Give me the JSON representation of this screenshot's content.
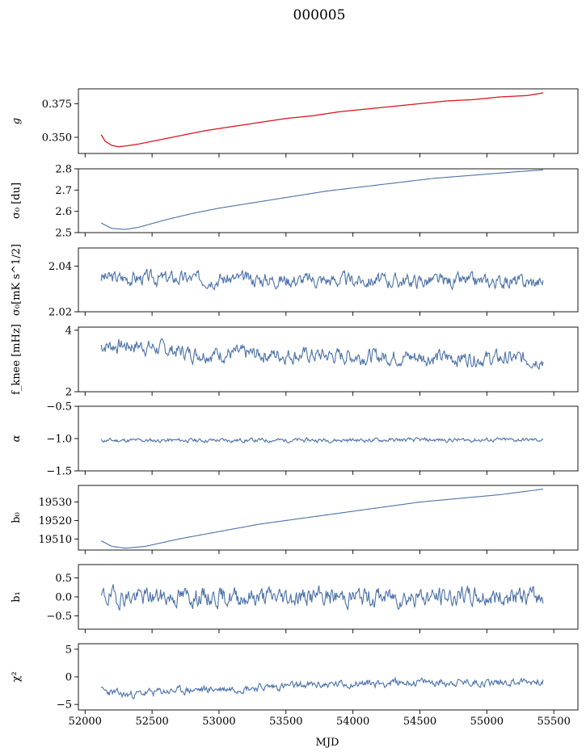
{
  "figure": {
    "title": "000005",
    "xlabel": "MJD",
    "xlim": [
      51950,
      55680
    ],
    "xticks": [
      52000,
      52500,
      53000,
      53500,
      54000,
      54500,
      55000,
      55500
    ],
    "x_start": 52120,
    "x_end": 55420,
    "main_color": "#4c72a8",
    "highlight_color": "#ff0000"
  },
  "chart_data": [
    {
      "type": "line",
      "id": "g",
      "ylabel": "g",
      "ylim": [
        0.338,
        0.386
      ],
      "yticks": [
        "0.350",
        "0.375"
      ],
      "ytick_values": [
        0.35,
        0.375
      ],
      "series": [
        {
          "color": "#4c72a8",
          "x": [
            52120,
            52150,
            52200,
            52250,
            52300,
            52400,
            52500,
            52700,
            52900,
            53100,
            53300,
            53500,
            53700,
            53900,
            54100,
            54300,
            54500,
            54700,
            54900,
            55100,
            55300,
            55420
          ],
          "y": [
            0.352,
            0.347,
            0.344,
            0.343,
            0.3435,
            0.345,
            0.347,
            0.351,
            0.355,
            0.358,
            0.361,
            0.364,
            0.366,
            0.369,
            0.371,
            0.373,
            0.375,
            0.377,
            0.378,
            0.38,
            0.381,
            0.383
          ]
        },
        {
          "color": "#ff0000",
          "x": [
            52120,
            52150,
            52200,
            52250,
            52300,
            52400,
            52500,
            52700,
            52900,
            53100,
            53300,
            53500,
            53700,
            53900,
            54100,
            54300,
            54500,
            54700,
            54900,
            55100,
            55300,
            55420
          ],
          "y": [
            0.352,
            0.347,
            0.344,
            0.343,
            0.3435,
            0.345,
            0.347,
            0.351,
            0.355,
            0.358,
            0.361,
            0.364,
            0.366,
            0.369,
            0.371,
            0.373,
            0.375,
            0.377,
            0.378,
            0.38,
            0.381,
            0.383
          ]
        }
      ]
    },
    {
      "type": "line",
      "id": "sigma0_du",
      "ylabel": "σ₀ [du]",
      "ylim": [
        2.5,
        2.8
      ],
      "yticks": [
        "2.5",
        "2.6",
        "2.7",
        "2.8"
      ],
      "ytick_values": [
        2.5,
        2.6,
        2.7,
        2.8
      ],
      "series": [
        {
          "color": "#4c72a8",
          "x": [
            52120,
            52200,
            52300,
            52400,
            52600,
            52800,
            53000,
            53200,
            53400,
            53600,
            53800,
            54000,
            54200,
            54400,
            54600,
            54800,
            55000,
            55200,
            55420
          ],
          "y": [
            2.545,
            2.52,
            2.515,
            2.525,
            2.56,
            2.59,
            2.615,
            2.635,
            2.655,
            2.675,
            2.695,
            2.71,
            2.725,
            2.74,
            2.755,
            2.765,
            2.775,
            2.785,
            2.795
          ]
        }
      ]
    },
    {
      "type": "line",
      "id": "sigma0_mks",
      "ylabel": "σ₀[mK s^1/2]",
      "ylim": [
        2.02,
        2.048
      ],
      "yticks": [
        "2.02",
        "2.04"
      ],
      "ytick_values": [
        2.02,
        2.04
      ],
      "series": [
        {
          "color": "#4c72a8",
          "x": [
            52120,
            55420
          ],
          "y": [
            2.035,
            2.033
          ],
          "noise": 0.0035,
          "seed": 3
        }
      ]
    },
    {
      "type": "line",
      "id": "fknee",
      "ylabel": "f_knee [mHz]",
      "ylim": [
        2.0,
        4.1
      ],
      "yticks": [
        "2",
        "4"
      ],
      "ytick_values": [
        2,
        4
      ],
      "series": [
        {
          "color": "#4c72a8",
          "x": [
            52120,
            52400,
            52800,
            55420
          ],
          "y": [
            3.5,
            3.5,
            3.25,
            3.05
          ],
          "noise": 0.28,
          "seed": 7
        }
      ]
    },
    {
      "type": "line",
      "id": "alpha",
      "ylabel": "α",
      "ylim": [
        -1.5,
        -0.5
      ],
      "yticks": [
        "−1.5",
        "−1.0",
        "−0.5"
      ],
      "ytick_values": [
        -1.5,
        -1.0,
        -0.5
      ],
      "series": [
        {
          "color": "#4c72a8",
          "x": [
            52120,
            55420
          ],
          "y": [
            -1.03,
            -1.02
          ],
          "noise": 0.035,
          "seed": 11
        }
      ]
    },
    {
      "type": "line",
      "id": "b0",
      "ylabel": "b₀",
      "ylim": [
        19504,
        19539
      ],
      "yticks": [
        "19510",
        "19520",
        "19530"
      ],
      "ytick_values": [
        19510,
        19520,
        19530
      ],
      "series": [
        {
          "color": "#4c72a8",
          "x": [
            52120,
            52200,
            52300,
            52450,
            52700,
            53000,
            53300,
            53600,
            53900,
            54200,
            54500,
            54800,
            55100,
            55420
          ],
          "y": [
            19509,
            19506,
            19505,
            19506,
            19510,
            19514,
            19518,
            19521,
            19524,
            19527,
            19530,
            19532,
            19534,
            19537
          ]
        }
      ]
    },
    {
      "type": "line",
      "id": "b1",
      "ylabel": "b₁",
      "ylim": [
        -0.85,
        0.85
      ],
      "yticks": [
        "−0.5",
        "0.0",
        "0.5"
      ],
      "ytick_values": [
        -0.5,
        0.0,
        0.5
      ],
      "series": [
        {
          "color": "#4c72a8",
          "x": [
            52120,
            55420
          ],
          "y": [
            0.0,
            0.0
          ],
          "noise": 0.28,
          "seed": 19
        }
      ]
    },
    {
      "type": "line",
      "id": "chi2",
      "ylabel": "χ²",
      "ylim": [
        -6,
        6
      ],
      "yticks": [
        "−5",
        "0",
        "5"
      ],
      "ytick_values": [
        -5,
        0,
        5
      ],
      "series": [
        {
          "color": "#4c72a8",
          "x": [
            52120,
            52300,
            52600,
            53200,
            53800,
            54400,
            55000,
            55420
          ],
          "y": [
            -2.5,
            -3.3,
            -2.6,
            -2.0,
            -1.4,
            -1.0,
            -1.0,
            -0.8
          ],
          "noise": 0.8,
          "seed": 23
        }
      ]
    }
  ]
}
